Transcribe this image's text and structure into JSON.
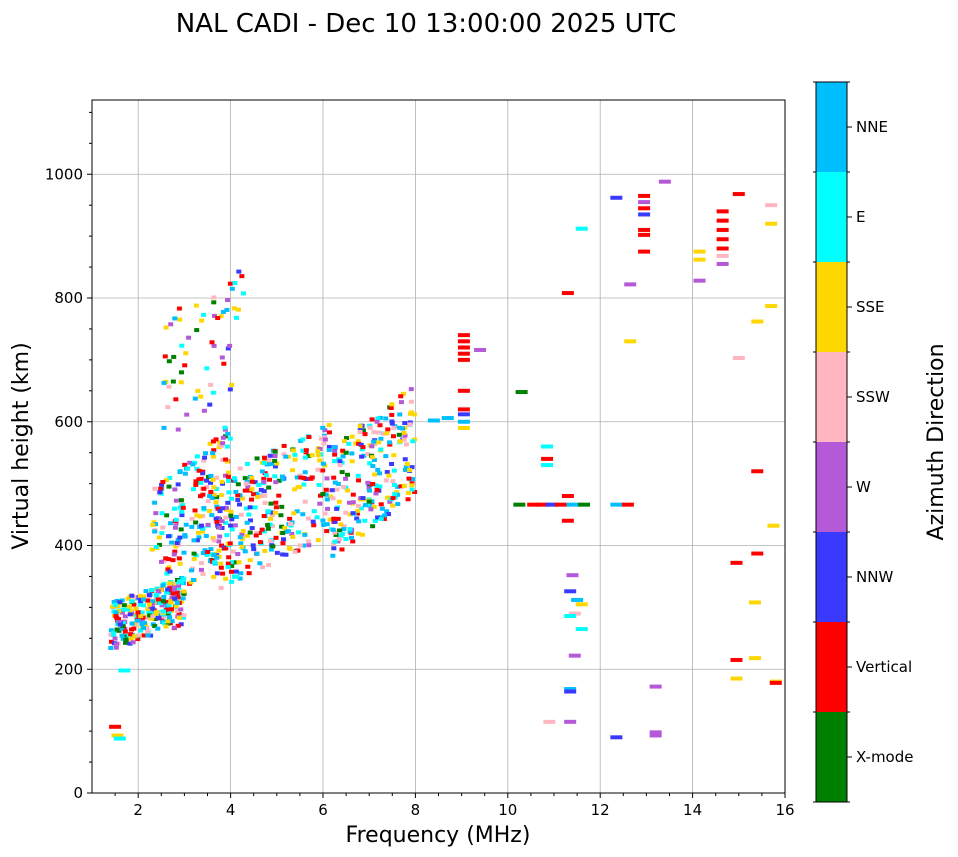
{
  "chart_data": {
    "type": "scatter",
    "title": "NAL CADI - Dec 10 13:00:00 2025 UTC",
    "xlabel": "Frequency (MHz)",
    "ylabel": "Virtual height (km)",
    "xlim": [
      1,
      16
    ],
    "ylim": [
      0,
      1120
    ],
    "grid": true,
    "x_ticks": [
      2,
      4,
      6,
      8,
      10,
      12,
      14,
      16
    ],
    "y_ticks": [
      0,
      200,
      400,
      600,
      800,
      1000
    ],
    "colorbar": {
      "label": "Azimuth Direction",
      "categories": [
        {
          "name": "X-mode",
          "color": "#008000"
        },
        {
          "name": "Vertical",
          "color": "#ff0000"
        },
        {
          "name": "NNW",
          "color": "#3a3aff"
        },
        {
          "name": "W",
          "color": "#b45ad8"
        },
        {
          "name": "SSW",
          "color": "#ffb6c1"
        },
        {
          "name": "SSE",
          "color": "#ffd700"
        },
        {
          "name": "E",
          "color": "#00ffff"
        },
        {
          "name": "NNE",
          "color": "#00bfff"
        }
      ]
    },
    "series": [
      {
        "name": "scatter_cloud",
        "regions": [
          {
            "f_min": 1.4,
            "f_max": 3.0,
            "h_min": 230,
            "h_max": 350,
            "count": 260
          },
          {
            "f_min": 2.3,
            "f_max": 4.0,
            "h_min": 280,
            "h_max": 600,
            "count": 220
          },
          {
            "f_min": 3.5,
            "f_max": 6.2,
            "h_min": 320,
            "h_max": 600,
            "count": 300
          },
          {
            "f_min": 6.2,
            "f_max": 8.0,
            "h_min": 380,
            "h_max": 660,
            "count": 240
          },
          {
            "f_min": 2.5,
            "f_max": 4.3,
            "h_min": 560,
            "h_max": 870,
            "count": 60
          }
        ]
      },
      {
        "name": "vertical_trace_9MHz",
        "points": [
          {
            "f": 9.05,
            "h": 740,
            "az": "Vertical"
          },
          {
            "f": 9.05,
            "h": 730,
            "az": "Vertical"
          },
          {
            "f": 9.05,
            "h": 720,
            "az": "Vertical"
          },
          {
            "f": 9.05,
            "h": 710,
            "az": "Vertical"
          },
          {
            "f": 9.05,
            "h": 700,
            "az": "Vertical"
          },
          {
            "f": 9.05,
            "h": 650,
            "az": "Vertical"
          },
          {
            "f": 9.05,
            "h": 620,
            "az": "Vertical"
          },
          {
            "f": 9.05,
            "h": 612,
            "az": "NNW"
          },
          {
            "f": 9.05,
            "h": 600,
            "az": "NNE"
          },
          {
            "f": 9.05,
            "h": 590,
            "az": "SSE"
          },
          {
            "f": 8.7,
            "h": 606,
            "az": "NNE"
          },
          {
            "f": 8.4,
            "h": 602,
            "az": "NNE"
          },
          {
            "f": 9.4,
            "h": 716,
            "az": "W"
          }
        ]
      },
      {
        "name": "layer_465km",
        "points": [
          {
            "f": 10.25,
            "h": 466,
            "az": "X-mode"
          },
          {
            "f": 10.55,
            "h": 466,
            "az": "Vertical"
          },
          {
            "f": 10.75,
            "h": 466,
            "az": "Vertical"
          },
          {
            "f": 10.95,
            "h": 466,
            "az": "NNW"
          },
          {
            "f": 11.15,
            "h": 466,
            "az": "Vertical"
          },
          {
            "f": 11.4,
            "h": 466,
            "az": "NNE"
          },
          {
            "f": 11.65,
            "h": 466,
            "az": "X-mode"
          },
          {
            "f": 12.35,
            "h": 466,
            "az": "NNE"
          },
          {
            "f": 12.6,
            "h": 466,
            "az": "Vertical"
          },
          {
            "f": 10.85,
            "h": 560,
            "az": "E"
          },
          {
            "f": 10.85,
            "h": 540,
            "az": "Vertical"
          },
          {
            "f": 10.85,
            "h": 530,
            "az": "E"
          },
          {
            "f": 11.3,
            "h": 480,
            "az": "Vertical"
          },
          {
            "f": 11.3,
            "h": 440,
            "az": "Vertical"
          },
          {
            "f": 10.3,
            "h": 648,
            "az": "X-mode"
          }
        ]
      },
      {
        "name": "high_echoes",
        "points": [
          {
            "f": 12.95,
            "h": 965,
            "az": "Vertical"
          },
          {
            "f": 12.95,
            "h": 955,
            "az": "W"
          },
          {
            "f": 12.95,
            "h": 945,
            "az": "Vertical"
          },
          {
            "f": 12.95,
            "h": 935,
            "az": "NNW"
          },
          {
            "f": 12.95,
            "h": 910,
            "az": "Vertical"
          },
          {
            "f": 12.95,
            "h": 902,
            "az": "Vertical"
          },
          {
            "f": 12.95,
            "h": 875,
            "az": "Vertical"
          },
          {
            "f": 13.4,
            "h": 988,
            "az": "W"
          },
          {
            "f": 12.35,
            "h": 962,
            "az": "NNW"
          },
          {
            "f": 12.65,
            "h": 822,
            "az": "W"
          },
          {
            "f": 12.65,
            "h": 730,
            "az": "SSE"
          },
          {
            "f": 14.65,
            "h": 940,
            "az": "Vertical"
          },
          {
            "f": 14.65,
            "h": 925,
            "az": "Vertical"
          },
          {
            "f": 14.65,
            "h": 910,
            "az": "Vertical"
          },
          {
            "f": 14.65,
            "h": 895,
            "az": "Vertical"
          },
          {
            "f": 14.65,
            "h": 880,
            "az": "Vertical"
          },
          {
            "f": 14.65,
            "h": 868,
            "az": "SSW"
          },
          {
            "f": 14.65,
            "h": 855,
            "az": "W"
          },
          {
            "f": 14.15,
            "h": 875,
            "az": "SSE"
          },
          {
            "f": 14.15,
            "h": 862,
            "az": "SSE"
          },
          {
            "f": 14.15,
            "h": 828,
            "az": "W"
          },
          {
            "f": 15.0,
            "h": 968,
            "az": "Vertical"
          },
          {
            "f": 15.7,
            "h": 950,
            "az": "SSW"
          },
          {
            "f": 15.7,
            "h": 920,
            "az": "SSE"
          },
          {
            "f": 15.7,
            "h": 787,
            "az": "SSE"
          },
          {
            "f": 15.4,
            "h": 762,
            "az": "SSE"
          },
          {
            "f": 15.0,
            "h": 703,
            "az": "SSW"
          },
          {
            "f": 11.6,
            "h": 912,
            "az": "E"
          },
          {
            "f": 11.3,
            "h": 808,
            "az": "Vertical"
          }
        ]
      },
      {
        "name": "low_echoes",
        "points": [
          {
            "f": 15.4,
            "h": 520,
            "az": "Vertical"
          },
          {
            "f": 15.75,
            "h": 432,
            "az": "SSE"
          },
          {
            "f": 15.4,
            "h": 387,
            "az": "Vertical"
          },
          {
            "f": 14.95,
            "h": 372,
            "az": "Vertical"
          },
          {
            "f": 15.35,
            "h": 308,
            "az": "SSE"
          },
          {
            "f": 15.35,
            "h": 218,
            "az": "SSE"
          },
          {
            "f": 14.95,
            "h": 215,
            "az": "Vertical"
          },
          {
            "f": 14.95,
            "h": 185,
            "az": "SSE"
          },
          {
            "f": 15.8,
            "h": 180,
            "az": "SSE"
          },
          {
            "f": 15.8,
            "h": 178,
            "az": "Vertical"
          },
          {
            "f": 11.4,
            "h": 352,
            "az": "W"
          },
          {
            "f": 11.35,
            "h": 326,
            "az": "NNW"
          },
          {
            "f": 11.5,
            "h": 312,
            "az": "NNE"
          },
          {
            "f": 11.6,
            "h": 305,
            "az": "SSE"
          },
          {
            "f": 11.45,
            "h": 290,
            "az": "SSW"
          },
          {
            "f": 11.35,
            "h": 286,
            "az": "E"
          },
          {
            "f": 11.6,
            "h": 265,
            "az": "E"
          },
          {
            "f": 11.45,
            "h": 222,
            "az": "W"
          },
          {
            "f": 11.35,
            "h": 168,
            "az": "NNE"
          },
          {
            "f": 11.35,
            "h": 164,
            "az": "NNW"
          },
          {
            "f": 10.9,
            "h": 115,
            "az": "SSW"
          },
          {
            "f": 11.35,
            "h": 115,
            "az": "W"
          },
          {
            "f": 12.35,
            "h": 90,
            "az": "NNW"
          },
          {
            "f": 13.2,
            "h": 172,
            "az": "W"
          },
          {
            "f": 13.2,
            "h": 98,
            "az": "W"
          },
          {
            "f": 13.2,
            "h": 93,
            "az": "W"
          },
          {
            "f": 1.5,
            "h": 107,
            "az": "Vertical"
          },
          {
            "f": 1.55,
            "h": 93,
            "az": "SSE"
          },
          {
            "f": 1.6,
            "h": 88,
            "az": "E"
          },
          {
            "f": 1.7,
            "h": 198,
            "az": "E"
          }
        ]
      }
    ]
  }
}
